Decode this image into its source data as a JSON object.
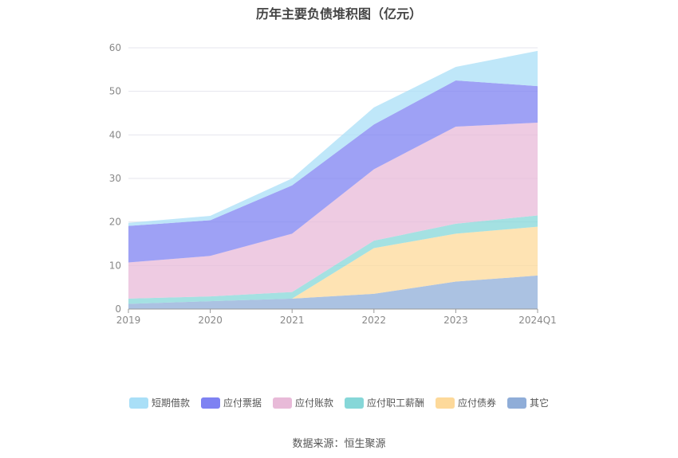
{
  "chart_data": {
    "type": "area",
    "stacked": true,
    "title": "历年主要负债堆积图（亿元）",
    "categories": [
      "2019",
      "2020",
      "2021",
      "2022",
      "2023",
      "2024Q1"
    ],
    "ylim": [
      0,
      60
    ],
    "yticks": [
      0,
      10,
      20,
      30,
      40,
      50,
      60
    ],
    "grid": true,
    "legend_position": "bottom",
    "series": [
      {
        "name": "其它",
        "color": "#8fadd8",
        "values": [
          1.2,
          1.8,
          2.4,
          3.5,
          6.3,
          7.7
        ]
      },
      {
        "name": "应付债券",
        "color": "#fdd99a",
        "values": [
          0,
          0,
          0,
          10.5,
          11.0,
          11.2
        ]
      },
      {
        "name": "应付职工薪酬",
        "color": "#86d7d8",
        "values": [
          1.2,
          1.1,
          1.5,
          1.7,
          2.3,
          2.6
        ]
      },
      {
        "name": "应付账款",
        "color": "#e8bad8",
        "values": [
          8.3,
          9.3,
          13.4,
          16.4,
          22.3,
          21.3
        ]
      },
      {
        "name": "应付票据",
        "color": "#7e82f2",
        "values": [
          8.4,
          8.2,
          11.1,
          10.3,
          10.6,
          8.4
        ]
      },
      {
        "name": "短期借款",
        "color": "#a9dff7",
        "values": [
          0.7,
          1.0,
          1.6,
          3.9,
          3.1,
          8.1
        ]
      }
    ]
  },
  "legend_order": [
    "短期借款",
    "应付票据",
    "应付账款",
    "应付职工薪酬",
    "应付债券",
    "其它"
  ],
  "source": "数据来源：恒生聚源"
}
